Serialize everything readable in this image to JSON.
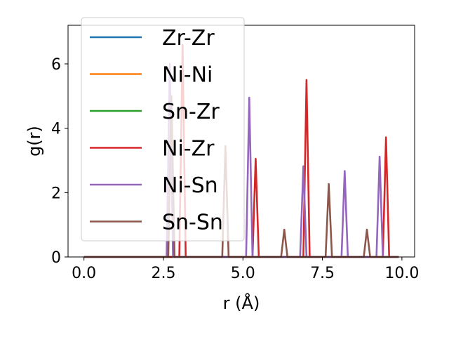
{
  "chart_data": {
    "type": "line",
    "title": "",
    "xlabel": "r (Å)",
    "ylabel": "g(r)",
    "xlim": [
      -0.5,
      10.4
    ],
    "ylim": [
      0,
      7.2
    ],
    "xticks": [
      0.0,
      2.5,
      5.0,
      7.5,
      10.0
    ],
    "xtick_labels": [
      "0.0",
      "2.5",
      "5.0",
      "7.5",
      "10.0"
    ],
    "yticks": [
      0,
      2,
      4,
      6
    ],
    "ytick_labels": [
      "0",
      "2",
      "4",
      "6"
    ],
    "grid": false,
    "legend_position": "top-left",
    "x_range": [
      0,
      9.9
    ],
    "peak_half_width": 0.1,
    "series": [
      {
        "name": "Zr-Zr",
        "color": "#1f77b4",
        "peaks": []
      },
      {
        "name": "Ni-Ni",
        "color": "#ff7f0e",
        "peaks": []
      },
      {
        "name": "Sn-Zr",
        "color": "#2ca02c",
        "peaks": []
      },
      {
        "name": "Ni-Zr",
        "color": "#d62728",
        "peaks": [
          [
            3.1,
            6.6
          ],
          [
            5.4,
            3.05
          ],
          [
            7.0,
            5.5
          ],
          [
            9.5,
            3.72
          ]
        ]
      },
      {
        "name": "Ni-Sn",
        "color": "#9467bd",
        "peaks": [
          [
            2.7,
            6.0
          ],
          [
            5.2,
            4.95
          ],
          [
            6.9,
            2.82
          ],
          [
            8.2,
            2.67
          ],
          [
            9.3,
            3.12
          ]
        ]
      },
      {
        "name": "Sn-Sn",
        "color": "#8c564b",
        "peaks": [
          [
            2.75,
            5.0
          ],
          [
            4.45,
            3.45
          ],
          [
            6.3,
            0.85
          ],
          [
            7.7,
            2.27
          ],
          [
            8.9,
            0.85
          ]
        ]
      }
    ]
  }
}
